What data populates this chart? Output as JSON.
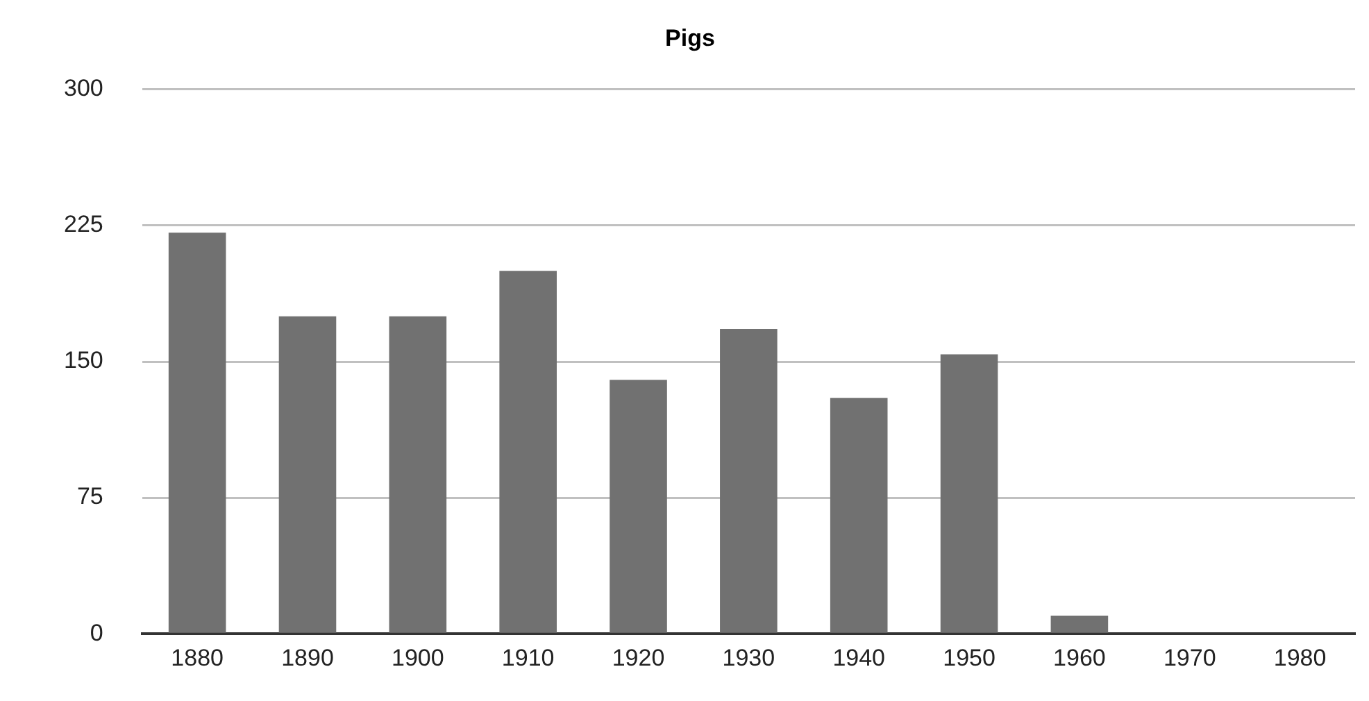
{
  "chart_data": {
    "type": "bar",
    "title": "Pigs",
    "categories": [
      "1880",
      "1890",
      "1900",
      "1910",
      "1920",
      "1930",
      "1940",
      "1950",
      "1960",
      "1970",
      "1980"
    ],
    "values": [
      221,
      175,
      175,
      200,
      140,
      168,
      130,
      154,
      10,
      0,
      0
    ],
    "color": "#717171",
    "ylim": [
      0,
      300
    ],
    "yticks": [
      0,
      75,
      150,
      225,
      300
    ],
    "grid": "y",
    "legend": false
  }
}
